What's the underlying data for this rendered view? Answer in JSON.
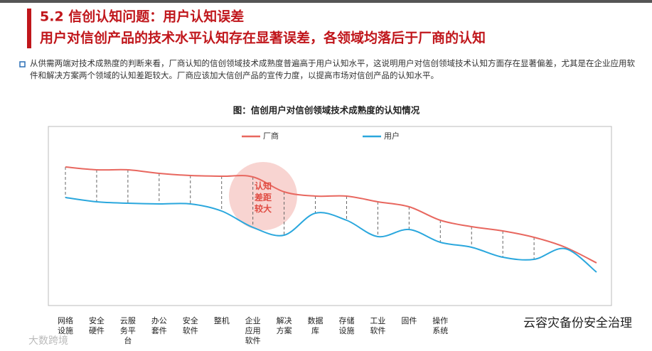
{
  "header": {
    "title": "5.2 信创认知问题：用户认知误差",
    "subtitle": "用户对信创产品的技术水平认知存在显著误差，各领域均落后于厂商的认知"
  },
  "paragraph": "从供需两端对技术成熟度的判断来看，厂商认知的信创领域技术成熟度普遍高于用户认知水平，这说明用户对信创领域技术认知方面存在显著偏差，尤其是在企业应用软件和解决方案两个领域的认知差距较大。厂商应该加大信创产品的宣传力度，以提高市场对信创产品的认知水平。",
  "watermarks": [
    "云容灾备份安全治理",
    "大数跨境"
  ],
  "chart_data": {
    "type": "line",
    "title": "图：信创用户对信创领域技术成熟度的认知情况",
    "categories": [
      "网络设施",
      "安全硬件",
      "云服务平台",
      "办公套件",
      "安全软件",
      "整机",
      "企业应用软件",
      "解决方案",
      "数据库",
      "存储设施",
      "工业软件",
      "固件",
      "操作系统",
      null,
      null,
      null,
      null,
      null
    ],
    "series": [
      {
        "name": "厂商",
        "color": "#e8675f",
        "values": [
          215,
          211,
          211,
          206,
          203,
          202,
          201,
          180,
          174,
          174,
          166,
          159,
          140,
          131,
          125,
          116,
          102,
          80
        ]
      },
      {
        "name": "用户",
        "color": "#2aa7dd",
        "values": [
          172,
          166,
          164,
          163,
          163,
          153,
          130,
          119,
          150,
          140,
          117,
          127,
          109,
          102,
          88,
          85,
          100,
          67
        ]
      }
    ],
    "ylim": [
      0,
      250
    ],
    "annotation": "认知差距较大",
    "legend": "top"
  }
}
